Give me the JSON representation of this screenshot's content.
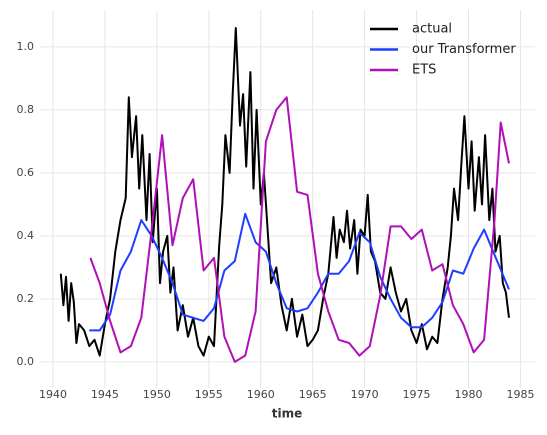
{
  "chart_data": {
    "type": "line",
    "x_label": "time",
    "xlim": [
      1938.75,
      1986.4
    ],
    "ylim": [
      -0.083,
      1.117
    ],
    "xticks": [
      1940,
      1945,
      1950,
      1955,
      1960,
      1965,
      1970,
      1975,
      1980,
      1985
    ],
    "yticks": [
      {
        "value": 0,
        "label": "0.0"
      },
      0.2,
      0.4,
      0.6,
      0.8,
      {
        "value": 1,
        "label": "1.0"
      }
    ],
    "grid": true,
    "legend": "upper right",
    "series": [
      {
        "name": "actual",
        "color": "#000000",
        "x": [
          1940.75,
          1941.0,
          1941.25,
          1941.5,
          1941.75,
          1942.0,
          1942.25,
          1942.5,
          1943.0,
          1943.5,
          1944.0,
          1944.5,
          1945.0,
          1945.5,
          1946.0,
          1946.5,
          1947.0,
          1947.3,
          1947.6,
          1948.0,
          1948.3,
          1948.6,
          1949.0,
          1949.3,
          1949.6,
          1950.0,
          1950.3,
          1950.6,
          1951.0,
          1951.3,
          1951.6,
          1952.0,
          1952.5,
          1953.0,
          1953.5,
          1954.0,
          1954.5,
          1955.0,
          1955.5,
          1956.0,
          1956.3,
          1956.6,
          1957.0,
          1957.3,
          1957.6,
          1958.0,
          1958.3,
          1958.6,
          1959.0,
          1959.3,
          1959.6,
          1960.0,
          1960.3,
          1960.6,
          1961.0,
          1961.5,
          1962.0,
          1962.5,
          1963.0,
          1963.5,
          1964.0,
          1964.5,
          1965.0,
          1965.5,
          1966.0,
          1966.5,
          1967.0,
          1967.3,
          1967.6,
          1968.0,
          1968.3,
          1968.6,
          1969.0,
          1969.3,
          1969.6,
          1970.0,
          1970.3,
          1970.6,
          1971.0,
          1971.5,
          1972.0,
          1972.5,
          1973.0,
          1973.5,
          1974.0,
          1974.5,
          1975.0,
          1975.5,
          1976.0,
          1976.5,
          1977.0,
          1977.5,
          1978.0,
          1978.3,
          1978.6,
          1979.0,
          1979.3,
          1979.6,
          1980.0,
          1980.3,
          1980.6,
          1981.0,
          1981.3,
          1981.6,
          1982.0,
          1982.3,
          1982.6,
          1983.0,
          1983.3,
          1983.6,
          1983.9
        ],
        "values": [
          0.28,
          0.18,
          0.27,
          0.13,
          0.25,
          0.19,
          0.06,
          0.12,
          0.1,
          0.05,
          0.07,
          0.02,
          0.12,
          0.2,
          0.35,
          0.45,
          0.52,
          0.84,
          0.65,
          0.78,
          0.55,
          0.72,
          0.45,
          0.66,
          0.38,
          0.55,
          0.25,
          0.35,
          0.4,
          0.22,
          0.3,
          0.1,
          0.18,
          0.08,
          0.14,
          0.05,
          0.02,
          0.08,
          0.05,
          0.37,
          0.5,
          0.72,
          0.6,
          0.85,
          1.06,
          0.75,
          0.85,
          0.62,
          0.92,
          0.55,
          0.8,
          0.5,
          0.6,
          0.45,
          0.25,
          0.3,
          0.18,
          0.1,
          0.2,
          0.08,
          0.15,
          0.05,
          0.07,
          0.1,
          0.2,
          0.28,
          0.46,
          0.33,
          0.42,
          0.38,
          0.48,
          0.36,
          0.45,
          0.28,
          0.42,
          0.4,
          0.53,
          0.35,
          0.32,
          0.22,
          0.2,
          0.3,
          0.22,
          0.16,
          0.2,
          0.1,
          0.06,
          0.12,
          0.04,
          0.08,
          0.06,
          0.2,
          0.3,
          0.4,
          0.55,
          0.45,
          0.62,
          0.78,
          0.55,
          0.7,
          0.48,
          0.65,
          0.5,
          0.72,
          0.45,
          0.55,
          0.35,
          0.4,
          0.25,
          0.22,
          0.14
        ]
      },
      {
        "name": "our Transformer",
        "color": "#1f3fff",
        "x": [
          1943.5,
          1944.5,
          1945.5,
          1946.5,
          1947.5,
          1948.5,
          1949.5,
          1950.5,
          1951.5,
          1952.5,
          1953.5,
          1954.5,
          1955.5,
          1956.5,
          1957.5,
          1958.5,
          1959.5,
          1960.5,
          1961.5,
          1962.5,
          1963.5,
          1964.5,
          1965.5,
          1966.5,
          1967.5,
          1968.5,
          1969.5,
          1970.5,
          1971.5,
          1972.5,
          1973.5,
          1974.5,
          1975.5,
          1976.5,
          1977.5,
          1978.5,
          1979.5,
          1980.5,
          1981.5,
          1982.5,
          1983.9
        ],
        "values": [
          0.1,
          0.1,
          0.15,
          0.29,
          0.35,
          0.45,
          0.4,
          0.33,
          0.25,
          0.15,
          0.14,
          0.13,
          0.17,
          0.29,
          0.32,
          0.47,
          0.38,
          0.35,
          0.25,
          0.17,
          0.16,
          0.17,
          0.22,
          0.28,
          0.28,
          0.32,
          0.41,
          0.38,
          0.27,
          0.2,
          0.14,
          0.11,
          0.11,
          0.14,
          0.19,
          0.29,
          0.28,
          0.36,
          0.42,
          0.34,
          0.23
        ]
      },
      {
        "name": "ETS",
        "color": "#b010b8",
        "x": [
          1943.6,
          1944.5,
          1945.5,
          1946.5,
          1947.5,
          1948.5,
          1949.5,
          1950.5,
          1951.5,
          1952.5,
          1953.5,
          1954.5,
          1955.5,
          1956.5,
          1957.5,
          1958.5,
          1959.5,
          1960.5,
          1961.5,
          1962.5,
          1963.5,
          1964.5,
          1965.5,
          1966.5,
          1967.5,
          1968.5,
          1969.5,
          1970.5,
          1971.5,
          1972.5,
          1973.5,
          1974.5,
          1975.5,
          1976.5,
          1977.5,
          1978.5,
          1979.5,
          1980.5,
          1981.5,
          1982.5,
          1983.1,
          1983.9
        ],
        "values": [
          0.33,
          0.25,
          0.13,
          0.03,
          0.05,
          0.14,
          0.42,
          0.72,
          0.37,
          0.52,
          0.58,
          0.29,
          0.33,
          0.08,
          0.0,
          0.02,
          0.16,
          0.7,
          0.8,
          0.84,
          0.54,
          0.53,
          0.28,
          0.16,
          0.07,
          0.06,
          0.02,
          0.05,
          0.21,
          0.43,
          0.43,
          0.39,
          0.42,
          0.29,
          0.31,
          0.18,
          0.12,
          0.03,
          0.07,
          0.45,
          0.76,
          0.63
        ]
      }
    ]
  }
}
